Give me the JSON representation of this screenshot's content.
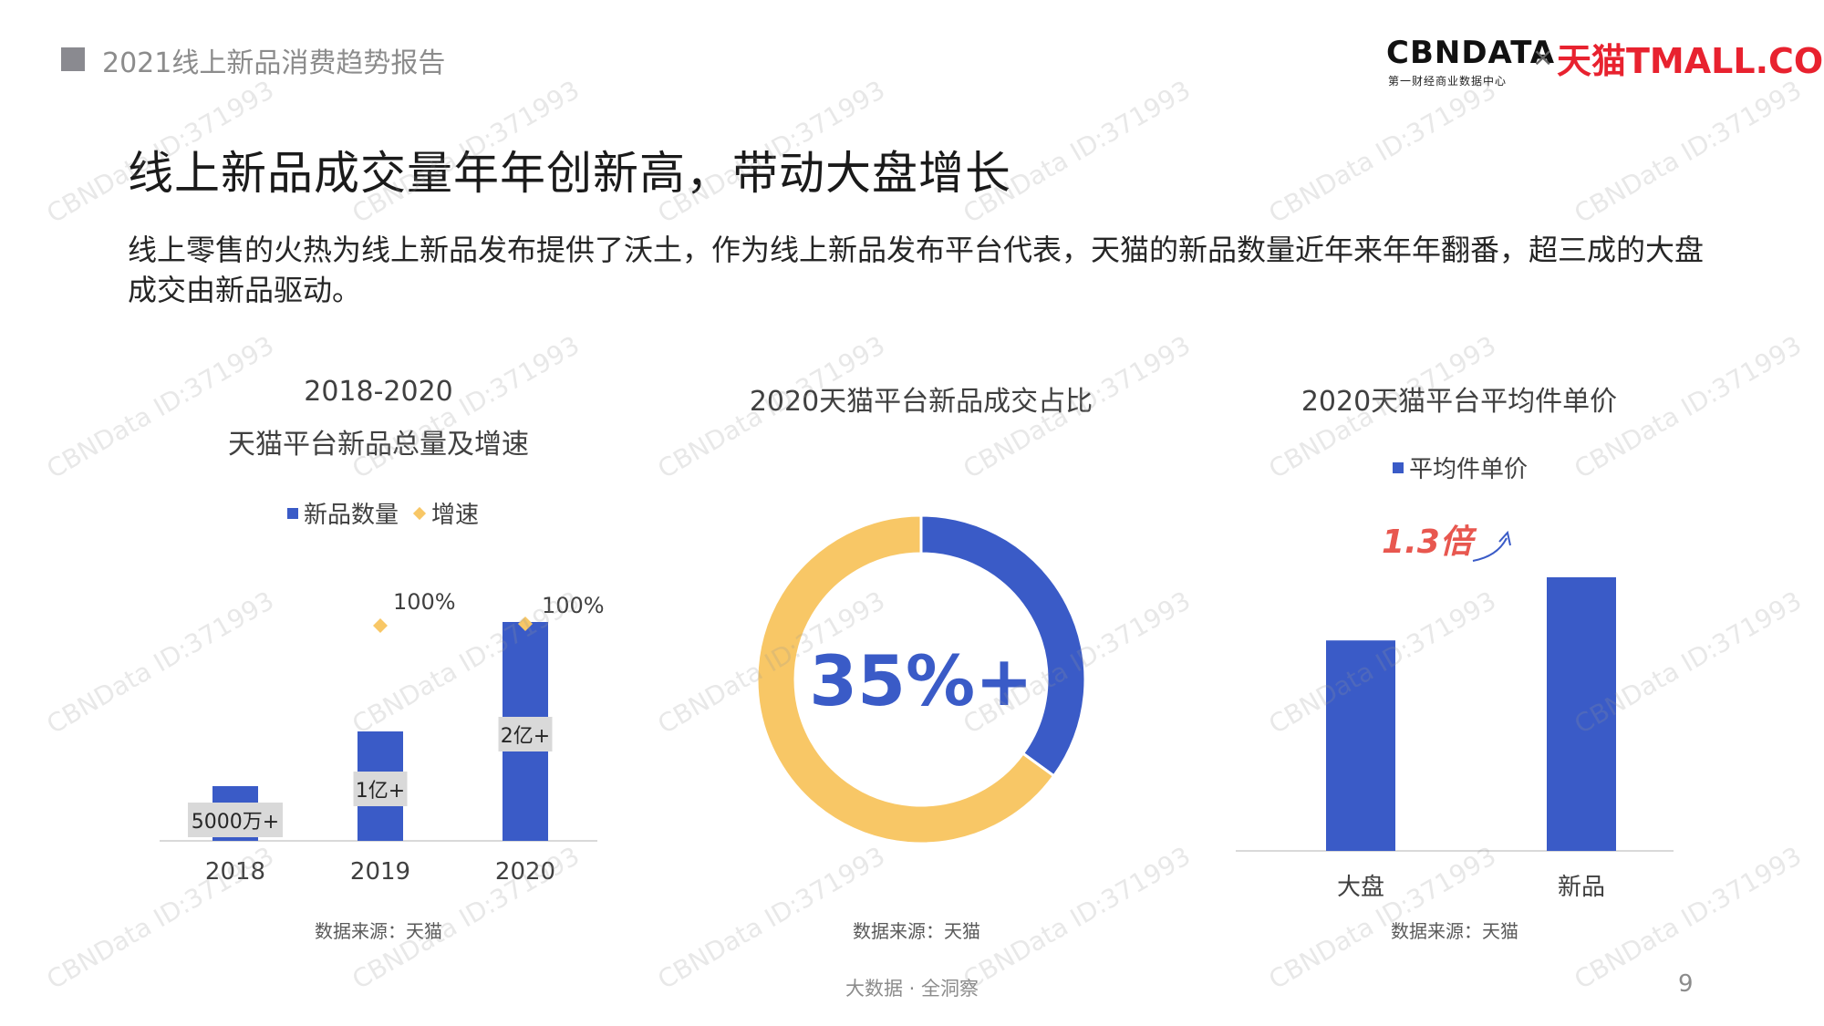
{
  "header": {
    "report_title": "2021线上新品消费趋势报告",
    "logo_cbndata": "CBNDATA",
    "logo_cbndata_sub": "第一财经商业数据中心",
    "logo_separator": "×",
    "logo_tmall": "天猫TMALL.COM"
  },
  "main": {
    "title": "线上新品成交量年年创新高，带动大盘增长",
    "intro": "线上零售的火热为线上新品发布提供了沃土，作为线上新品发布平台代表，天猫的新品数量近年来年年翻番，超三成的大盘成交由新品驱动。"
  },
  "colors": {
    "blue": "#3a5bc7",
    "yellow": "#f8c766",
    "red_annotation": "#e8574f"
  },
  "chart_data": [
    {
      "type": "bar",
      "title_line1": "2018-2020",
      "title_line2": "天猫平台新品总量及增速",
      "categories": [
        "2018",
        "2019",
        "2020"
      ],
      "series": [
        {
          "name": "新品数量",
          "values": [
            0.5,
            1,
            2
          ],
          "labels": [
            "5000万+",
            "1亿+",
            "2亿+"
          ]
        },
        {
          "name": "增速",
          "values": [
            null,
            100,
            100
          ],
          "labels": [
            "",
            "100%",
            "100%"
          ]
        }
      ],
      "source": "数据来源：天猫"
    },
    {
      "type": "pie",
      "title": "2020天猫平台新品成交占比",
      "slices": [
        {
          "value": 35
        },
        {
          "value": 65
        }
      ],
      "center_label": "35%+",
      "source": "数据来源：天猫"
    },
    {
      "type": "bar",
      "title": "2020天猫平台平均件单价",
      "categories": [
        "大盘",
        "新品"
      ],
      "series": [
        {
          "name": "平均件单价",
          "values": [
            1,
            1.3
          ]
        }
      ],
      "annotation": "1.3倍",
      "source": "数据来源：天猫"
    }
  ],
  "footer": {
    "tagline": "大数据 · 全洞察",
    "page": "9"
  },
  "watermark": "CBNData ID:371993"
}
